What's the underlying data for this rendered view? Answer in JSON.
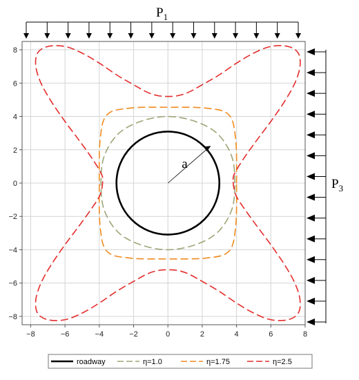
{
  "chart_data": {
    "type": "line",
    "title": "",
    "xlabel": "",
    "ylabel": "",
    "xlim": [
      -8.5,
      8
    ],
    "ylim": [
      -8.5,
      8.5
    ],
    "x_ticks": [
      -8,
      -6,
      -4,
      -2,
      0,
      2,
      4,
      6,
      8
    ],
    "y_ticks": [
      -8,
      -6,
      -4,
      -2,
      0,
      2,
      4,
      6,
      8
    ],
    "grid": true,
    "legend_position": "bottom",
    "series": [
      {
        "name": "roadway",
        "color": "#000000",
        "style": "solid",
        "shape": "circle",
        "radius": 3.0,
        "x": [
          3.0,
          2.6,
          1.5,
          0.0,
          -1.5,
          -2.6,
          -3.0,
          -2.6,
          -1.5,
          0.0,
          1.5,
          2.6,
          3.0
        ],
        "y": [
          0.0,
          1.5,
          2.6,
          3.0,
          2.6,
          1.5,
          0.0,
          -1.5,
          -2.6,
          -3.0,
          -2.6,
          -1.5,
          0.0
        ]
      },
      {
        "name": "η=1.0",
        "color": "#99a676",
        "style": "dashed",
        "x": [
          3.9,
          3.72,
          2.9,
          1.6,
          0.0,
          -1.6,
          -2.9,
          -3.72,
          -3.9,
          -3.72,
          -2.9,
          -1.6,
          0.0,
          1.6,
          2.9,
          3.72,
          3.9
        ],
        "y": [
          0.0,
          1.6,
          2.95,
          3.7,
          4.0,
          3.7,
          2.95,
          1.6,
          0.0,
          -1.6,
          -2.95,
          -3.7,
          -4.0,
          -3.7,
          -2.95,
          -1.6,
          0.0
        ]
      },
      {
        "name": "η=1.75",
        "color": "#f08a1e",
        "style": "dashed",
        "x": [
          4.0,
          3.95,
          3.55,
          2.2,
          0.0,
          -2.2,
          -3.55,
          -3.95,
          -4.0,
          -3.95,
          -3.55,
          -2.2,
          0.0,
          2.2,
          3.55,
          3.95,
          4.0
        ],
        "y": [
          0.0,
          2.6,
          4.1,
          4.5,
          4.55,
          4.5,
          4.1,
          2.6,
          0.0,
          -2.6,
          -4.1,
          -4.5,
          -4.55,
          -4.5,
          -4.1,
          -2.6,
          0.0
        ]
      },
      {
        "name": "η=2.5",
        "color": "#e42b2b",
        "style": "dashed",
        "quadrant_points": {
          "x": [
            3.8,
            3.95,
            4.5,
            5.2,
            6.0,
            6.8,
            7.4,
            7.7,
            7.6,
            7.0,
            6.0,
            5.0,
            4.0,
            3.0,
            2.0,
            1.2,
            0.6,
            0.0
          ],
          "y": [
            0.2,
            0.7,
            1.6,
            2.6,
            3.7,
            4.9,
            6.0,
            7.0,
            7.8,
            8.2,
            8.2,
            7.8,
            7.2,
            6.5,
            5.9,
            5.45,
            5.25,
            5.2
          ]
        }
      }
    ],
    "annotations": {
      "radius_label": "a",
      "top_load_label": "P",
      "top_load_subscript": "1",
      "right_load_label": "P",
      "right_load_subscript": "3"
    }
  }
}
